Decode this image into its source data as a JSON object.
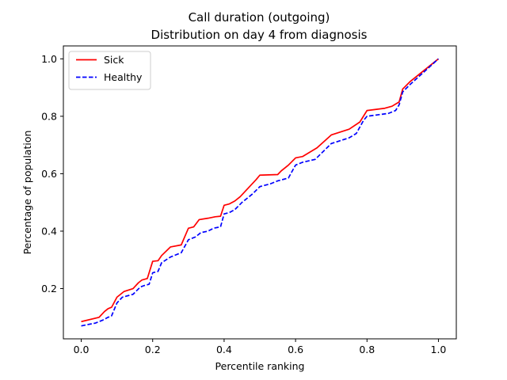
{
  "chart_data": {
    "type": "line",
    "title": "Call duration (outgoing)",
    "subtitle": "Distribution on day 4 from diagnosis",
    "xlabel": "Percentile ranking",
    "ylabel": "Percentage of population",
    "xlim": [
      -0.05,
      1.05
    ],
    "ylim": [
      0.025,
      1.045
    ],
    "xticks": [
      "0.0",
      "0.2",
      "0.4",
      "0.6",
      "0.8",
      "1.0"
    ],
    "yticks": [
      "0.2",
      "0.4",
      "0.6",
      "0.8",
      "1.0"
    ],
    "grid": false,
    "legend_position": "top-left",
    "series": [
      {
        "name": "Sick",
        "color": "#ff0000",
        "style": "solid",
        "points": [
          [
            0.0,
            0.085
          ],
          [
            0.05,
            0.1
          ],
          [
            0.065,
            0.12
          ],
          [
            0.075,
            0.13
          ],
          [
            0.085,
            0.135
          ],
          [
            0.1,
            0.17
          ],
          [
            0.12,
            0.19
          ],
          [
            0.145,
            0.2
          ],
          [
            0.16,
            0.22
          ],
          [
            0.17,
            0.23
          ],
          [
            0.185,
            0.235
          ],
          [
            0.2,
            0.295
          ],
          [
            0.215,
            0.297
          ],
          [
            0.225,
            0.315
          ],
          [
            0.25,
            0.345
          ],
          [
            0.28,
            0.352
          ],
          [
            0.3,
            0.41
          ],
          [
            0.315,
            0.415
          ],
          [
            0.33,
            0.44
          ],
          [
            0.355,
            0.445
          ],
          [
            0.375,
            0.45
          ],
          [
            0.39,
            0.452
          ],
          [
            0.4,
            0.49
          ],
          [
            0.415,
            0.495
          ],
          [
            0.43,
            0.505
          ],
          [
            0.445,
            0.52
          ],
          [
            0.46,
            0.54
          ],
          [
            0.49,
            0.58
          ],
          [
            0.5,
            0.595
          ],
          [
            0.55,
            0.597
          ],
          [
            0.56,
            0.61
          ],
          [
            0.58,
            0.63
          ],
          [
            0.6,
            0.655
          ],
          [
            0.62,
            0.66
          ],
          [
            0.66,
            0.69
          ],
          [
            0.7,
            0.735
          ],
          [
            0.75,
            0.755
          ],
          [
            0.78,
            0.78
          ],
          [
            0.8,
            0.82
          ],
          [
            0.85,
            0.828
          ],
          [
            0.87,
            0.835
          ],
          [
            0.89,
            0.85
          ],
          [
            0.9,
            0.895
          ],
          [
            0.92,
            0.92
          ],
          [
            1.0,
            1.0
          ]
        ]
      },
      {
        "name": "Healthy",
        "color": "#0000ff",
        "style": "dashed",
        "points": [
          [
            0.0,
            0.07
          ],
          [
            0.04,
            0.08
          ],
          [
            0.06,
            0.09
          ],
          [
            0.075,
            0.1
          ],
          [
            0.085,
            0.105
          ],
          [
            0.1,
            0.15
          ],
          [
            0.115,
            0.17
          ],
          [
            0.145,
            0.18
          ],
          [
            0.165,
            0.205
          ],
          [
            0.175,
            0.21
          ],
          [
            0.19,
            0.215
          ],
          [
            0.2,
            0.255
          ],
          [
            0.215,
            0.26
          ],
          [
            0.225,
            0.29
          ],
          [
            0.25,
            0.31
          ],
          [
            0.28,
            0.325
          ],
          [
            0.3,
            0.37
          ],
          [
            0.32,
            0.38
          ],
          [
            0.335,
            0.395
          ],
          [
            0.355,
            0.4
          ],
          [
            0.37,
            0.41
          ],
          [
            0.39,
            0.415
          ],
          [
            0.4,
            0.46
          ],
          [
            0.415,
            0.465
          ],
          [
            0.43,
            0.475
          ],
          [
            0.45,
            0.5
          ],
          [
            0.48,
            0.53
          ],
          [
            0.5,
            0.555
          ],
          [
            0.53,
            0.565
          ],
          [
            0.55,
            0.575
          ],
          [
            0.58,
            0.585
          ],
          [
            0.6,
            0.63
          ],
          [
            0.62,
            0.64
          ],
          [
            0.655,
            0.65
          ],
          [
            0.7,
            0.705
          ],
          [
            0.75,
            0.725
          ],
          [
            0.77,
            0.74
          ],
          [
            0.79,
            0.785
          ],
          [
            0.8,
            0.8
          ],
          [
            0.86,
            0.81
          ],
          [
            0.88,
            0.82
          ],
          [
            0.89,
            0.84
          ],
          [
            0.9,
            0.885
          ],
          [
            0.92,
            0.91
          ],
          [
            1.0,
            1.0
          ]
        ]
      }
    ]
  }
}
